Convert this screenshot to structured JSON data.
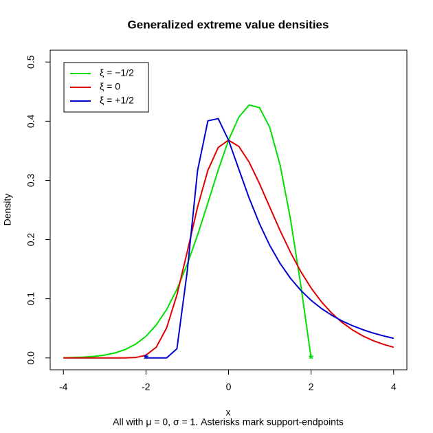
{
  "chart_data": {
    "type": "line",
    "title": "Generalized extreme value densities",
    "x_label": "x",
    "y_label": "Density",
    "caption": "All with μ = 0, σ = 1. Asterisks mark support-endpoints",
    "x": [
      -4,
      -3.75,
      -3.5,
      -3.25,
      -3,
      -2.75,
      -2.5,
      -2.25,
      -2,
      -1.75,
      -1.5,
      -1.25,
      -1,
      -0.75,
      -0.5,
      -0.25,
      0,
      0.25,
      0.5,
      0.75,
      1,
      1.25,
      1.5,
      1.75,
      2,
      2.25,
      2.5,
      2.75,
      3,
      3.25,
      3.5,
      3.75,
      4
    ],
    "series": [
      {
        "name": "ξ = −1/2",
        "color": "#00e000",
        "values": [
          0.00037,
          0.00074,
          0.00143,
          0.00267,
          0.00483,
          0.00844,
          0.01424,
          0.02323,
          0.0366,
          0.0557,
          0.0818,
          0.1159,
          0.1581,
          0.2076,
          0.262,
          0.3174,
          0.3679,
          0.4069,
          0.4273,
          0.4229,
          0.3894,
          0.3258,
          0.2349,
          0.1231,
          0,
          null,
          null,
          null,
          null,
          null,
          null,
          null,
          null
        ]
      },
      {
        "name": "ξ = 0",
        "color": "#e00000",
        "values": [
          0,
          0,
          0,
          0,
          0,
          0,
          0.0001,
          0.0007,
          0.0046,
          0.0182,
          0.0507,
          0.1064,
          0.1794,
          0.2549,
          0.317,
          0.3556,
          0.3679,
          0.3574,
          0.3307,
          0.2945,
          0.2546,
          0.2151,
          0.1785,
          0.146,
          0.1182,
          0.0949,
          0.0756,
          0.06,
          0.0474,
          0.0373,
          0.0293,
          0.023,
          0.018
        ]
      },
      {
        "name": "ξ = +1/2",
        "color": "#0000d0",
        "values": [
          null,
          null,
          null,
          null,
          null,
          null,
          null,
          null,
          0,
          0,
          0,
          0.0155,
          0.1465,
          0.3166,
          0.4006,
          0.4044,
          0.3679,
          0.3187,
          0.27,
          0.2267,
          0.19,
          0.1596,
          0.1346,
          0.1142,
          0.0974,
          0.0835,
          0.0721,
          0.0625,
          0.0545,
          0.0478,
          0.0421,
          0.0373,
          0.0331
        ]
      }
    ],
    "endpoints": [
      {
        "x": -2,
        "y": 0,
        "color": "#0000d0"
      },
      {
        "x": 2,
        "y": 0,
        "color": "#00e000"
      }
    ],
    "xlim": [
      -4.32,
      4.32
    ],
    "ylim": [
      -0.02,
      0.52
    ],
    "xticks": [
      -4,
      -2,
      0,
      2,
      4
    ],
    "yticks": [
      {
        "value": 0,
        "label": "0.0"
      },
      0.1,
      0.2,
      0.3,
      0.4,
      0.5
    ],
    "legend": "top-left",
    "grid": false
  }
}
